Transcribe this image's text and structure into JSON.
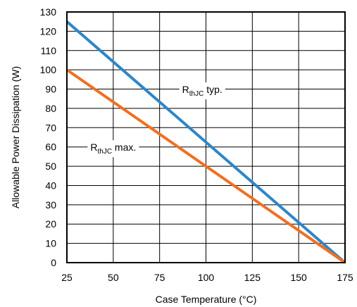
{
  "chart_data": {
    "type": "line",
    "title": "",
    "xlabel": "Case Temperature (°C)",
    "ylabel": "Allowable Power Dissipation (W)",
    "xlim": [
      25,
      175
    ],
    "ylim": [
      0,
      130
    ],
    "x_ticks": [
      25,
      50,
      75,
      100,
      125,
      150,
      175
    ],
    "y_ticks": [
      0,
      10,
      20,
      30,
      40,
      50,
      60,
      70,
      80,
      90,
      100,
      110,
      120,
      130
    ],
    "grid": true,
    "legend": "none",
    "series": [
      {
        "name": "RthJC typ.",
        "color": "#2E86C8",
        "x": [
          25,
          175
        ],
        "y": [
          125,
          0
        ]
      },
      {
        "name": "RthJC max.",
        "color": "#F07020",
        "x": [
          25,
          175
        ],
        "y": [
          100,
          0
        ]
      }
    ],
    "annotations": [
      {
        "main": "R",
        "sub": "thJC",
        "rest": " typ.",
        "x": 98,
        "y": 88,
        "series": 0
      },
      {
        "main": "R",
        "sub": "thJC",
        "rest": " max.",
        "x": 50,
        "y": 58,
        "series": 1
      }
    ]
  }
}
